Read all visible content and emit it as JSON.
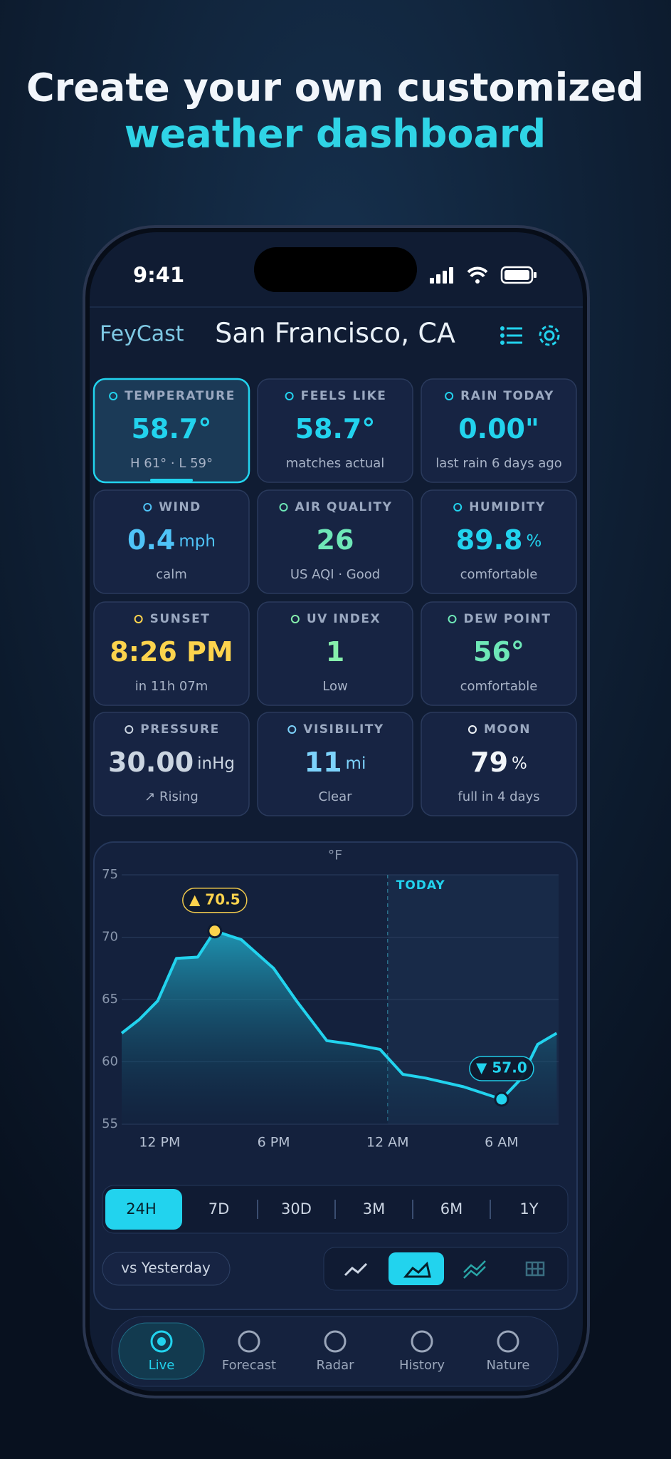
{
  "headline": {
    "line1": "Create your own customized",
    "line2": "weather dashboard"
  },
  "status": {
    "time": "9:41"
  },
  "header": {
    "brand": "FeyCast",
    "location": "San Francisco, CA"
  },
  "cards": [
    {
      "label": "TEMPERATURE",
      "value": "58.7°",
      "sub": "H 61° · L 59°",
      "color": "#22d3ee"
    },
    {
      "label": "FEELS LIKE",
      "value": "58.7°",
      "sub": "matches actual",
      "color": "#22d3ee"
    },
    {
      "label": "RAIN TODAY",
      "value": "0.00\"",
      "sub": "last rain 6 days ago",
      "color": "#22d3ee"
    },
    {
      "label": "WIND",
      "value": "0.4",
      "unit": "mph",
      "sub": "calm",
      "color": "#4fc3f7"
    },
    {
      "label": "AIR QUALITY",
      "value": "26",
      "sub": "US AQI · Good",
      "color": "#6ee7b7"
    },
    {
      "label": "HUMIDITY",
      "value": "89.8",
      "unit": "%",
      "sub": "comfortable",
      "color": "#22d3ee"
    },
    {
      "label": "SUNSET",
      "value": "8:26 PM",
      "sub": "in 11h 07m",
      "color": "#fcd34d"
    },
    {
      "label": "UV INDEX",
      "value": "1",
      "sub": "Low",
      "color": "#86efac"
    },
    {
      "label": "DEW POINT",
      "value": "56°",
      "sub": "comfortable",
      "color": "#6ee7b7"
    },
    {
      "label": "PRESSURE",
      "value": "30.00",
      "unit": "inHg",
      "sub": "↗ Rising",
      "color": "#cbd5e1"
    },
    {
      "label": "VISIBILITY",
      "value": "11",
      "unit": "mi",
      "sub": "Clear",
      "color": "#7dd3fc"
    },
    {
      "label": "MOON",
      "value": "79",
      "unit": "%",
      "sub": "full in 4 days",
      "color": "#f1f5f9"
    }
  ],
  "chart_data": {
    "type": "line",
    "unit_label": "°F",
    "color": "#22d3ee",
    "grid": true,
    "x": [
      -2,
      -1.07,
      -0.1,
      0.88,
      2,
      2.9,
      4.3,
      6,
      7.2,
      8.8,
      10.2,
      11.6,
      12.8,
      14,
      16,
      18,
      19,
      19.9,
      20.9
    ],
    "values": [
      62.3,
      63.4,
      64.9,
      68.3,
      68.4,
      70.5,
      69.8,
      67.5,
      64.9,
      61.7,
      61.4,
      61.0,
      59.0,
      58.7,
      58.0,
      57.0,
      58.6,
      61.4,
      62.3
    ],
    "xlim": [
      -2,
      21
    ],
    "ylim": [
      55,
      75
    ],
    "yticks": [
      55,
      60,
      65,
      70,
      75
    ],
    "xticks": [
      {
        "value": 0,
        "label": "12 PM"
      },
      {
        "value": 6,
        "label": "6 PM"
      },
      {
        "value": 12,
        "label": "12 AM"
      },
      {
        "value": 18,
        "label": "6 AM"
      }
    ],
    "today": {
      "x": 12,
      "label": "TODAY"
    },
    "annotations": [
      {
        "x": 2.9,
        "y": 70.5,
        "label": "▲ 70.5",
        "color": "#fcd34d"
      },
      {
        "x": 18,
        "y": 57.0,
        "label": "▼ 57.0",
        "color": "#22d3ee"
      }
    ]
  },
  "range_options": [
    "24H",
    "7D",
    "30D",
    "3M",
    "6M",
    "1Y"
  ],
  "compare": "vs Yesterday",
  "tabs": [
    "Live",
    "Forecast",
    "Radar",
    "History",
    "Nature"
  ]
}
